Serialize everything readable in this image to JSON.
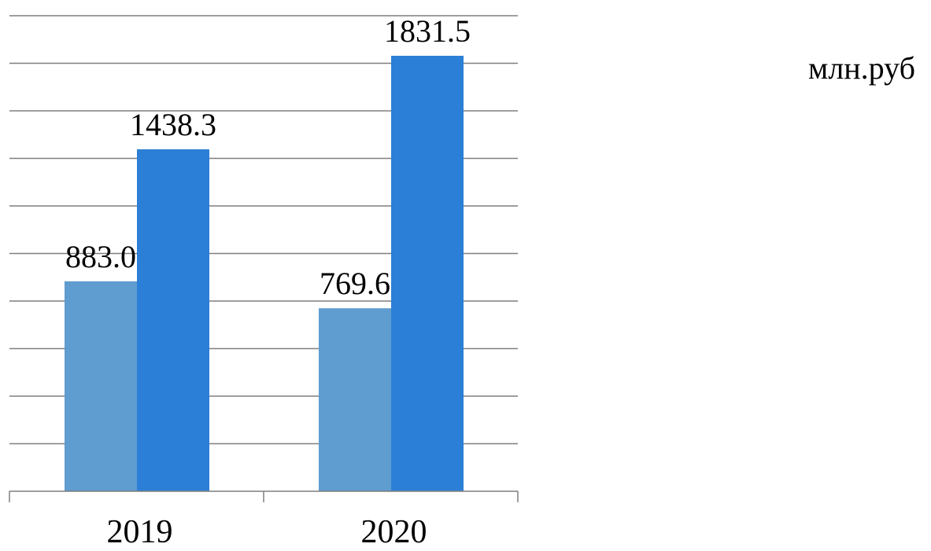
{
  "chart_data": {
    "type": "bar",
    "categories": [
      "2019",
      "2020"
    ],
    "series": [
      {
        "values": [
          883.0,
          769.6
        ],
        "labels": [
          "883.0",
          "769.6"
        ],
        "color": "#5f9ccf"
      },
      {
        "values": [
          1438.3,
          1831.5
        ],
        "labels": [
          "1438.3",
          "1831.5"
        ],
        "color": "#2b7fd6"
      }
    ],
    "ylim": [
      0,
      2000
    ],
    "grid_step": 200,
    "grid": true,
    "y_tick_labels_visible": false,
    "unit_label": "млн.руб",
    "gridline_color": "#7f7f7f"
  }
}
